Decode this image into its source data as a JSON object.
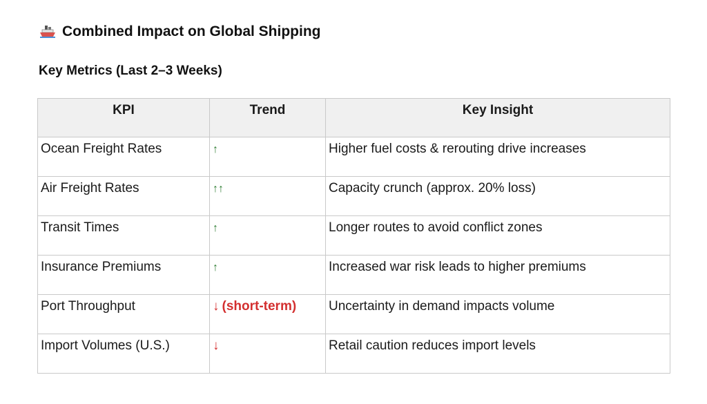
{
  "heading": {
    "icon": "ship-icon",
    "title": "Combined Impact on Global Shipping"
  },
  "subheading": "Key Metrics (Last 2–3 Weeks)",
  "colors": {
    "up": "#2e7d32",
    "down": "#d32f2f"
  },
  "table": {
    "headers": [
      "KPI",
      "Trend",
      "Key Insight"
    ],
    "rows": [
      {
        "kpi": "Ocean Freight Rates",
        "trend_symbol": "↑",
        "trend_direction": "up",
        "trend_note": "",
        "insight": "Higher fuel costs & rerouting drive increases"
      },
      {
        "kpi": "Air Freight Rates",
        "trend_symbol": "↑↑",
        "trend_direction": "up",
        "trend_note": "",
        "insight": "Capacity crunch (approx. 20% loss)"
      },
      {
        "kpi": "Transit Times",
        "trend_symbol": "↑",
        "trend_direction": "up",
        "trend_note": "",
        "insight": "Longer routes to avoid conflict zones"
      },
      {
        "kpi": "Insurance Premiums",
        "trend_symbol": "↑",
        "trend_direction": "up",
        "trend_note": "",
        "insight": "Increased war risk leads to higher premiums"
      },
      {
        "kpi": "Port Throughput",
        "trend_symbol": "↓",
        "trend_direction": "down",
        "trend_note": "(short-term)",
        "insight": "Uncertainty in demand impacts volume"
      },
      {
        "kpi": "Import Volumes (U.S.)",
        "trend_symbol": "↓",
        "trend_direction": "down",
        "trend_note": "",
        "insight": "Retail caution reduces import levels"
      }
    ]
  }
}
